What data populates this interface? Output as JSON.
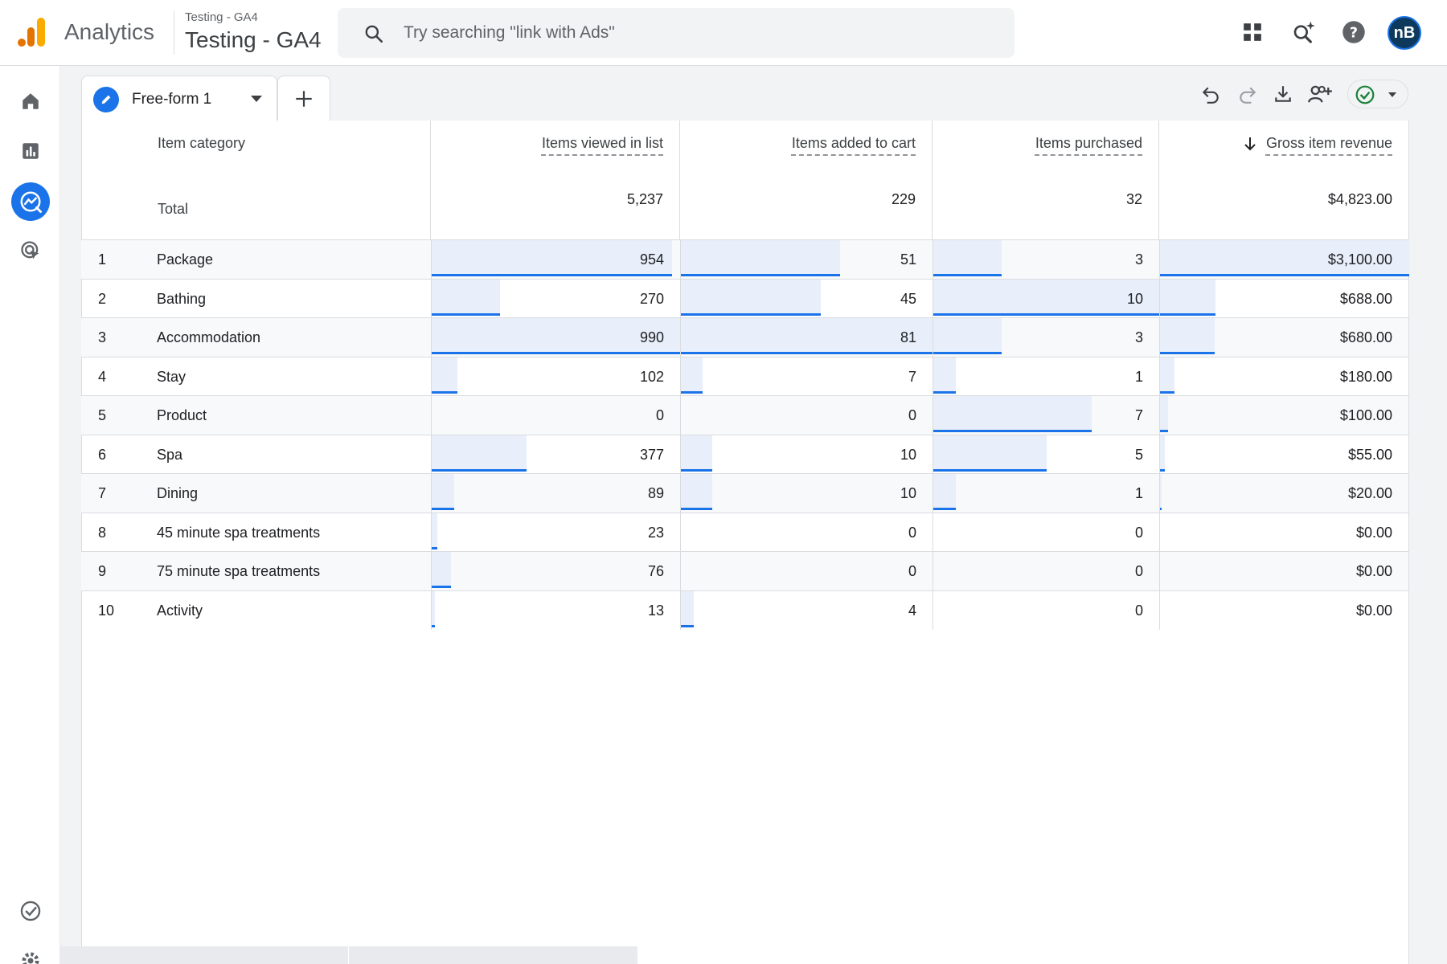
{
  "header": {
    "app_name": "Analytics",
    "account_sub": "Testing - GA4",
    "account_main": "Testing - GA4",
    "search_placeholder": "Try searching \"link with Ads\"",
    "avatar_initials": "nB"
  },
  "exploration": {
    "tab_label": "Free-form 1"
  },
  "table": {
    "dimension_header": "Item category",
    "total_label": "Total",
    "metrics": [
      {
        "label": "Items viewed in list",
        "total": "5,237",
        "max": 990
      },
      {
        "label": "Items added to cart",
        "total": "229",
        "max": 81
      },
      {
        "label": "Items purchased",
        "total": "32",
        "max": 10
      },
      {
        "label": "Gross item revenue",
        "total": "$4,823.00",
        "max": 3100,
        "sorted": "descending"
      }
    ],
    "rows": [
      {
        "idx": "1",
        "name": "Package",
        "values": [
          "954",
          "51",
          "3",
          "$3,100.00"
        ],
        "raw": [
          954,
          51,
          3,
          3100
        ]
      },
      {
        "idx": "2",
        "name": "Bathing",
        "values": [
          "270",
          "45",
          "10",
          "$688.00"
        ],
        "raw": [
          270,
          45,
          10,
          688
        ]
      },
      {
        "idx": "3",
        "name": "Accommodation",
        "values": [
          "990",
          "81",
          "3",
          "$680.00"
        ],
        "raw": [
          990,
          81,
          3,
          680
        ]
      },
      {
        "idx": "4",
        "name": "Stay",
        "values": [
          "102",
          "7",
          "1",
          "$180.00"
        ],
        "raw": [
          102,
          7,
          1,
          180
        ]
      },
      {
        "idx": "5",
        "name": "Product",
        "values": [
          "0",
          "0",
          "7",
          "$100.00"
        ],
        "raw": [
          0,
          0,
          7,
          100
        ]
      },
      {
        "idx": "6",
        "name": "Spa",
        "values": [
          "377",
          "10",
          "5",
          "$55.00"
        ],
        "raw": [
          377,
          10,
          5,
          55
        ]
      },
      {
        "idx": "7",
        "name": "Dining",
        "values": [
          "89",
          "10",
          "1",
          "$20.00"
        ],
        "raw": [
          89,
          10,
          1,
          20
        ]
      },
      {
        "idx": "8",
        "name": "45 minute spa treatments",
        "values": [
          "23",
          "0",
          "0",
          "$0.00"
        ],
        "raw": [
          23,
          0,
          0,
          0
        ]
      },
      {
        "idx": "9",
        "name": "75 minute spa treatments",
        "values": [
          "76",
          "0",
          "0",
          "$0.00"
        ],
        "raw": [
          76,
          0,
          0,
          0
        ]
      },
      {
        "idx": "10",
        "name": "Activity",
        "values": [
          "13",
          "4",
          "0",
          "$0.00"
        ],
        "raw": [
          13,
          4,
          0,
          0
        ]
      }
    ]
  },
  "colors": {
    "accent": "#1a73e8",
    "bar_fill": "#e8eefa",
    "logo_orange": "#e37400",
    "logo_yellow": "#f9ab00"
  }
}
